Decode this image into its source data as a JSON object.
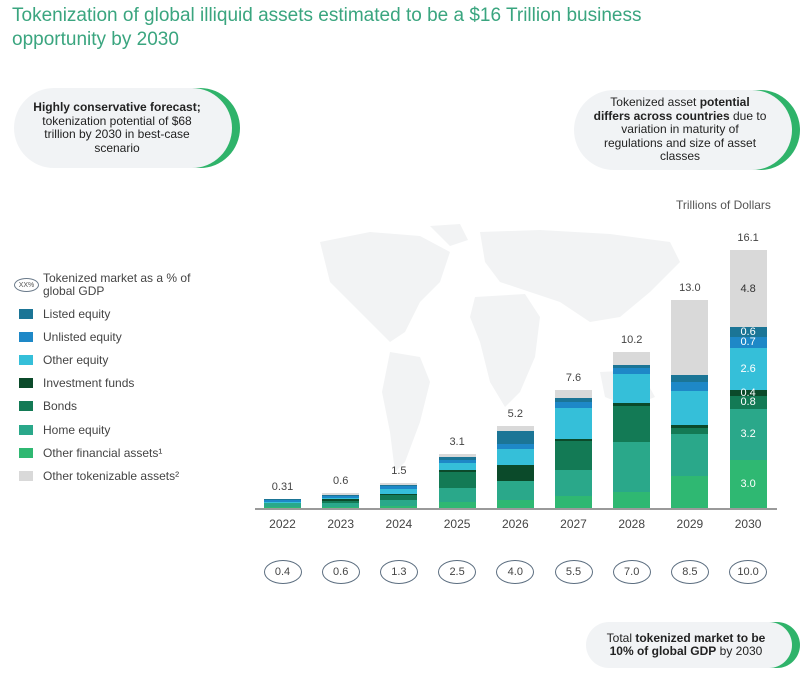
{
  "title": "Tokenization of global illiquid assets estimated to be a $16 Trillion business opportunity by 2030",
  "callouts": {
    "left": {
      "bold": "Highly conservative forecast;",
      "text": " tokenization potential of $68 trillion by 2030 in best-case scenario"
    },
    "right": {
      "pre": "Tokenized asset ",
      "bold": "potential differs across countries",
      "post": " due to variation in maturity of regulations and size of asset classes"
    },
    "bottom": {
      "pre": "Total ",
      "bold1": "tokenized market to be 10% of global GDP",
      "post": " by 2030"
    }
  },
  "units": "Trillions of Dollars",
  "legend": {
    "gdp_marker": "XX%",
    "gdp_label": "Tokenized market as a % of global GDP",
    "items": [
      {
        "label": "Listed equity",
        "color": "#1b7596"
      },
      {
        "label": "Unlisted equity",
        "color": "#1e88c7"
      },
      {
        "label": "Other equity",
        "color": "#35bfd9"
      },
      {
        "label": "Investment funds",
        "color": "#0b4a2a"
      },
      {
        "label": "Bonds",
        "color": "#137a55"
      },
      {
        "label": "Home equity",
        "color": "#2aa88a"
      },
      {
        "label": "Other financial assets¹",
        "color": "#2fb872"
      },
      {
        "label": "Other tokenizable assets²",
        "color": "#d9d9d9"
      }
    ]
  },
  "chart_data": {
    "type": "bar",
    "stacked": true,
    "title": "Tokenization of global illiquid assets estimated to be a $16 Trillion business opportunity by 2030",
    "ylabel": "Trillions of Dollars",
    "categories": [
      "2022",
      "2023",
      "2024",
      "2025",
      "2026",
      "2027",
      "2028",
      "2029",
      "2030"
    ],
    "totals": [
      "0.31",
      "0.6",
      "1.5",
      "3.1",
      "5.2",
      "7.6",
      "10.2",
      "13.0",
      "16.1"
    ],
    "gdp_percent": [
      "0.4",
      "0.6",
      "1.3",
      "2.5",
      "4.0",
      "5.5",
      "7.0",
      "8.5",
      "10.0"
    ],
    "series": [
      {
        "name": "Other financial assets¹",
        "color": "#2fb872",
        "values": [
          0.05,
          0.05,
          0.15,
          0.35,
          0.5,
          0.75,
          1.0,
          2.0,
          3.0
        ],
        "labels": [
          "",
          "",
          "",
          "",
          "",
          "",
          "",
          "",
          "3.0"
        ]
      },
      {
        "name": "Home equity",
        "color": "#2aa88a",
        "values": [
          0.2,
          0.25,
          0.35,
          0.9,
          1.2,
          1.65,
          3.1,
          2.6,
          3.2
        ],
        "labels": [
          "",
          "",
          "",
          "",
          "",
          "",
          "",
          "",
          "3.2"
        ]
      },
      {
        "name": "Bonds",
        "color": "#137a55",
        "values": [
          0.0,
          0.1,
          0.3,
          1.0,
          0.0,
          1.8,
          2.3,
          0.4,
          0.8
        ],
        "labels": [
          "",
          "",
          "",
          "",
          "",
          "",
          "",
          "",
          "0.8"
        ]
      },
      {
        "name": "Investment funds",
        "color": "#0b4a2a",
        "values": [
          0.0,
          0.05,
          0.1,
          0.1,
          1.0,
          0.1,
          0.15,
          0.2,
          0.4
        ],
        "labels": [
          "",
          "",
          "",
          "",
          "",
          "",
          "",
          "",
          "0.4"
        ]
      },
      {
        "name": "Other equity",
        "color": "#35bfd9",
        "values": [
          0.03,
          0.05,
          0.3,
          0.45,
          1.0,
          1.95,
          1.8,
          2.1,
          2.6
        ],
        "labels": [
          "",
          "",
          "",
          "",
          "",
          "",
          "",
          "",
          "2.6"
        ]
      },
      {
        "name": "Unlisted equity",
        "color": "#1e88c7",
        "values": [
          0.02,
          0.05,
          0.15,
          0.2,
          0.3,
          0.4,
          0.4,
          0.6,
          0.7
        ],
        "labels": [
          "",
          "",
          "",
          "",
          "",
          "",
          "",
          "",
          "0.7"
        ]
      },
      {
        "name": "Listed equity",
        "color": "#1b7596",
        "values": [
          0.01,
          0.03,
          0.1,
          0.2,
          0.8,
          0.2,
          0.2,
          0.4,
          0.6
        ],
        "labels": [
          "",
          "",
          "",
          "",
          "",
          "",
          "",
          "",
          "0.6"
        ]
      },
      {
        "name": "Other tokenizable assets²",
        "color": "#d9d9d9",
        "values": [
          0.0,
          0.02,
          0.05,
          0.2,
          0.3,
          0.55,
          0.8,
          4.7,
          4.8
        ],
        "labels": [
          "",
          "",
          "",
          "",
          "",
          "",
          "",
          "",
          "4.8"
        ]
      }
    ],
    "ylim": [
      0,
      16.5
    ],
    "grid": false,
    "legend_position": "left"
  }
}
